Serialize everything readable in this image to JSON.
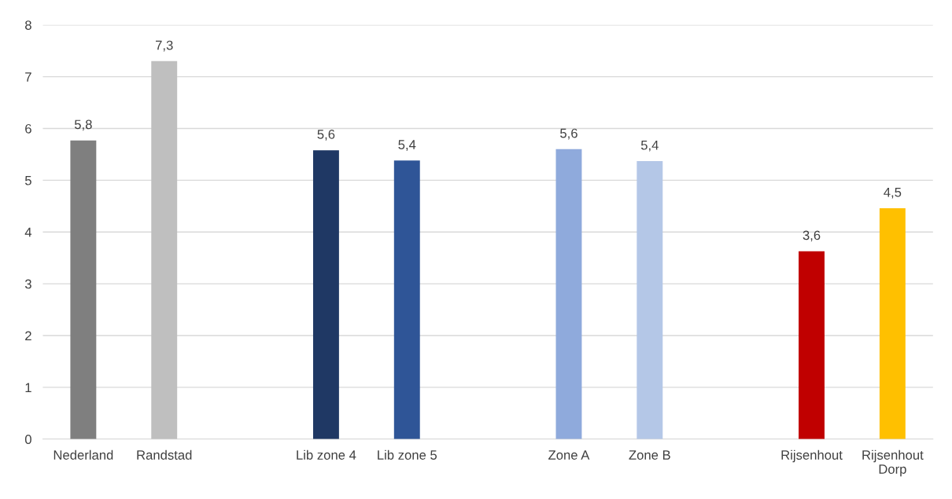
{
  "chart_data": {
    "type": "bar",
    "categories": [
      "Nederland",
      "Randstad",
      null,
      "Lib zone 4",
      "Lib zone 5",
      null,
      "Zone A",
      "Zone B",
      null,
      "Rijsenhout",
      "Rijsenhout\nDorp"
    ],
    "values": [
      5.77,
      7.3,
      null,
      5.58,
      5.38,
      null,
      5.6,
      5.37,
      null,
      3.63,
      4.46
    ],
    "colors": [
      "#7f7f7f",
      "#bfbfbf",
      null,
      "#1f3864",
      "#2f5597",
      null,
      "#8faadc",
      "#b4c7e7",
      null,
      "#c00000",
      "#ffc000"
    ],
    "value_labels": [
      "5,8",
      "7,3",
      null,
      "5,6",
      "5,4",
      null,
      "5,6",
      "5,4",
      null,
      "3,6",
      "4,5"
    ],
    "ylim": [
      0,
      8
    ],
    "yticks": [
      0,
      1,
      2,
      3,
      4,
      5,
      6,
      7,
      8
    ],
    "grid": "y"
  }
}
